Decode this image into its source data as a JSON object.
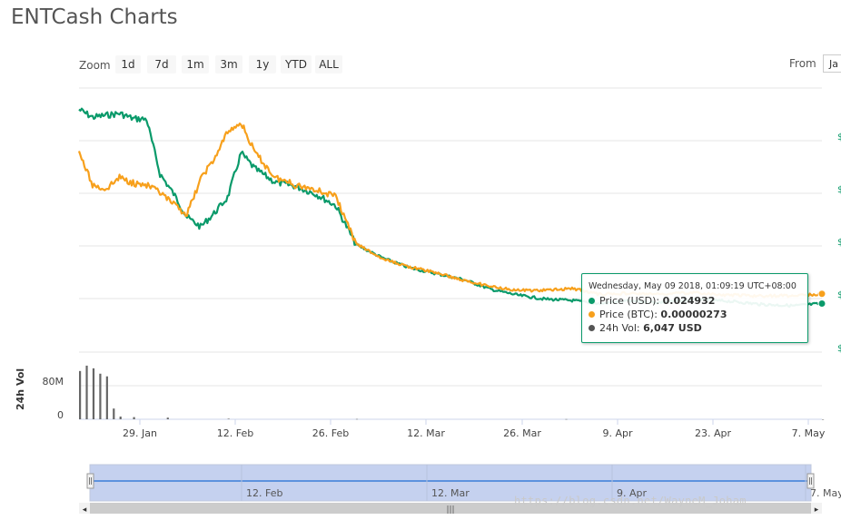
{
  "page_title": "ENTCash Charts",
  "toolbar": {
    "zoom_label": "Zoom",
    "buttons": [
      "1d",
      "7d",
      "1m",
      "3m",
      "1y",
      "YTD",
      "ALL"
    ],
    "from_label": "From",
    "from_value": "Ja"
  },
  "chart_data": {
    "type": "line",
    "x_tick_labels": [
      "29. Jan",
      "12. Feb",
      "26. Feb",
      "12. Mar",
      "26. Mar",
      "9. Apr",
      "23. Apr",
      "7. May"
    ],
    "navigator_tick_labels": [
      "12. Feb",
      "12. Mar",
      "9. Apr",
      "7. May"
    ],
    "y_axis_right_labels": [
      "$",
      "$",
      "$",
      "$",
      "$"
    ],
    "volume_axis": {
      "label": "24h Vol",
      "ticks": [
        "80M",
        "0"
      ]
    },
    "x_range": [
      "2018-01-19",
      "2018-05-09"
    ],
    "series": [
      {
        "name": "Price (USD)",
        "color": "#0a9a6a",
        "x": [
          "2018-01-19",
          "2018-01-21",
          "2018-01-23",
          "2018-01-25",
          "2018-01-27",
          "2018-01-29",
          "2018-01-31",
          "2018-02-02",
          "2018-02-04",
          "2018-02-06",
          "2018-02-08",
          "2018-02-10",
          "2018-02-12",
          "2018-02-14",
          "2018-02-17",
          "2018-02-20",
          "2018-02-23",
          "2018-02-26",
          "2018-03-01",
          "2018-03-05",
          "2018-03-09",
          "2018-03-13",
          "2018-03-17",
          "2018-03-21",
          "2018-03-25",
          "2018-03-29",
          "2018-04-02",
          "2018-04-06",
          "2018-04-10",
          "2018-04-15",
          "2018-04-20",
          "2018-04-25",
          "2018-04-30",
          "2018-05-05",
          "2018-05-09"
        ],
        "y": [
          0.1245,
          0.1205,
          0.1215,
          0.1225,
          0.1198,
          0.1195,
          0.0913,
          0.0813,
          0.0692,
          0.0643,
          0.0712,
          0.0793,
          0.1022,
          0.0942,
          0.0872,
          0.0852,
          0.0812,
          0.0752,
          0.0552,
          0.0482,
          0.0432,
          0.0402,
          0.0372,
          0.0322,
          0.0292,
          0.0272,
          0.0265,
          0.0248,
          0.0262,
          0.0255,
          0.0268,
          0.0262,
          0.0245,
          0.0238,
          0.0249
        ]
      },
      {
        "name": "Price (BTC)",
        "color": "#f7a01c",
        "x": [
          "2018-01-19",
          "2018-01-21",
          "2018-01-23",
          "2018-01-25",
          "2018-01-27",
          "2018-01-29",
          "2018-01-31",
          "2018-02-02",
          "2018-02-04",
          "2018-02-06",
          "2018-02-08",
          "2018-02-10",
          "2018-02-12",
          "2018-02-14",
          "2018-02-17",
          "2018-02-20",
          "2018-02-23",
          "2018-02-26",
          "2018-03-01",
          "2018-03-05",
          "2018-03-09",
          "2018-03-13",
          "2018-03-17",
          "2018-03-21",
          "2018-03-25",
          "2018-03-29",
          "2018-04-02",
          "2018-04-06",
          "2018-04-10",
          "2018-04-15",
          "2018-04-20",
          "2018-04-25",
          "2018-04-30",
          "2018-05-05",
          "2018-05-09"
        ],
        "y": [
          0.1027,
          0.0857,
          0.0837,
          0.0897,
          0.0867,
          0.0857,
          0.0817,
          0.0757,
          0.0707,
          0.0887,
          0.0987,
          0.1127,
          0.1177,
          0.1027,
          0.0897,
          0.0857,
          0.0837,
          0.0797,
          0.0557,
          0.0477,
          0.0437,
          0.0407,
          0.0367,
          0.0337,
          0.0317,
          0.0317,
          0.0327,
          0.0297,
          0.0302,
          0.0296,
          0.0304,
          0.0292,
          0.0288,
          0.029,
          0.0299
        ]
      },
      {
        "name": "24h Vol",
        "color": "#555555",
        "x": [
          "2018-01-19",
          "2018-01-20",
          "2018-01-21",
          "2018-01-22",
          "2018-01-23",
          "2018-01-24",
          "2018-01-25",
          "2018-01-27",
          "2018-02-01",
          "2018-02-10",
          "2018-03-01",
          "2018-04-01",
          "2018-05-09"
        ],
        "y": [
          90,
          100,
          95,
          85,
          80,
          20,
          5,
          4,
          3,
          1,
          0.5,
          0.3,
          0.006
        ]
      }
    ],
    "tooltip": {
      "header": "Wednesday, May 09 2018, 01:09:19 UTC+08:00",
      "rows": [
        {
          "label": "Price (USD):",
          "value": "0.024932",
          "color": "#0a9a6a"
        },
        {
          "label": "Price (BTC):",
          "value": "0.00000273",
          "color": "#f7a01c"
        },
        {
          "label": "24h Vol:",
          "value": "6,047 USD",
          "color": "#555555"
        }
      ]
    },
    "grid": true,
    "navigator": true
  },
  "watermark": "https://blog.csdn.net/WayneM_Joham"
}
